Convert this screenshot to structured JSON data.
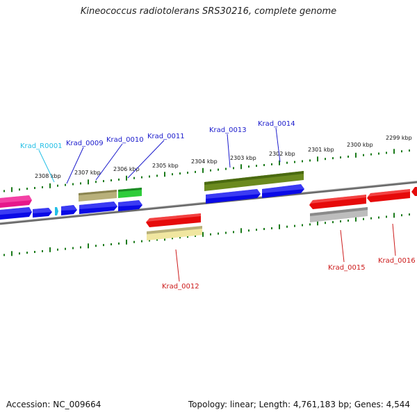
{
  "title": "Kineococcus radiotolerans SRS30216, complete genome",
  "footer": {
    "accession": "Accession: NC_009664",
    "summary": "Topology: linear; Length: 4,761,183 bp; Genes: 4,544"
  },
  "scale_ticks": [
    "2308 kbp",
    "2307 kbp",
    "2306 kbp",
    "2305 kbp",
    "2304 kbp",
    "2303 kbp",
    "2302 kbp",
    "2301 kbp",
    "2300 kbp",
    "2299 kbp"
  ],
  "gene_labels": [
    {
      "name": "Krad_R0001",
      "color": "#22bfe6"
    },
    {
      "name": "Krad_0009",
      "color": "#1a1acc"
    },
    {
      "name": "Krad_0010",
      "color": "#1a1acc"
    },
    {
      "name": "Krad_0011",
      "color": "#1a1acc"
    },
    {
      "name": "Krad_0013",
      "color": "#1a1acc"
    },
    {
      "name": "Krad_0014",
      "color": "#1a1acc"
    },
    {
      "name": "Krad_0012",
      "color": "#cc1a1a"
    },
    {
      "name": "Krad_0015",
      "color": "#cc1a1a"
    },
    {
      "name": "Krad_0016",
      "color": "#cc1a1a"
    }
  ],
  "colors": {
    "forward_gene": "#0a0ae6",
    "reverse_gene": "#e60a0a",
    "rna_gene": "#22bfe6",
    "pink_gene": "#e6178a",
    "backbone": "#7a7a7a",
    "tick_mark": "#1a7a1a",
    "olive": "#6b8a1f",
    "khaki": "#b8b07a",
    "green": "#2ecc3a",
    "pale_yellow": "#f0e6a0",
    "grey": "#bdbdbd"
  }
}
